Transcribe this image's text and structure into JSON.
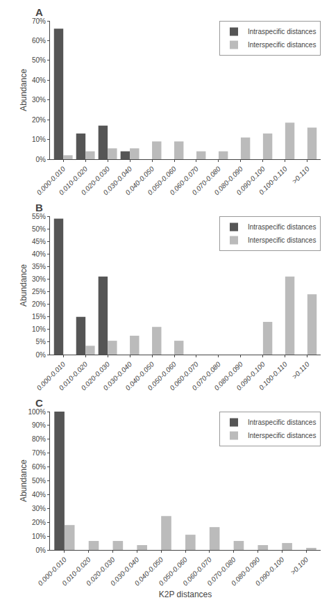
{
  "chart_data": [
    {
      "type": "bar",
      "title": "A",
      "categories": [
        "0.000-0.010",
        "0.010-0.020",
        "0.020-0.030",
        "0.030-0.040",
        "0.040-0.050",
        "0.050-0.060",
        "0.060-0.070",
        "0.070-0.080",
        "0.080-0.090",
        "0.090-0.100",
        "0.100-0.110",
        ">0.110"
      ],
      "series": [
        {
          "name": "Intraspecific distances",
          "color": "#555555",
          "values": [
            66,
            13,
            17,
            4,
            0,
            0,
            0,
            0,
            0,
            0,
            0,
            0
          ]
        },
        {
          "name": "Interspecific distances",
          "color": "#bbbbbb",
          "values": [
            2,
            4,
            5.5,
            5.5,
            9,
            9,
            4,
            4,
            11,
            13,
            18.5,
            16
          ]
        }
      ],
      "ylabel": "Abundance",
      "ylim": [
        0,
        70
      ],
      "yticks": [
        {
          "value": 0,
          "label": "0%"
        },
        {
          "value": 10,
          "label": "10%"
        },
        {
          "value": 20,
          "label": "20%"
        },
        {
          "value": 30,
          "label": "30%"
        },
        {
          "value": 40,
          "label": "40%"
        },
        {
          "value": 50,
          "label": "50%"
        },
        {
          "value": 60,
          "label": "60%"
        },
        {
          "value": 70,
          "label": "70%"
        }
      ],
      "legend": "upper right",
      "grid": false
    },
    {
      "type": "bar",
      "title": "B",
      "categories": [
        "0.000-0.010",
        "0.010-0.020",
        "0.020-0.030",
        "0.030-0.040",
        "0.040-0.050",
        "0.050-0.060",
        "0.060-0.070",
        "0.070-0.080",
        "0.080-0.090",
        "0.090-0.100",
        "0.100-0.110",
        ">0.110"
      ],
      "series": [
        {
          "name": "Intraspecific distances",
          "color": "#555555",
          "values": [
            54,
            15,
            31,
            0,
            0,
            0,
            0,
            0,
            0,
            0,
            0,
            0
          ]
        },
        {
          "name": "Interspecific distances",
          "color": "#bbbbbb",
          "values": [
            0,
            3.5,
            5.5,
            7.5,
            11,
            5.5,
            0,
            0,
            0,
            13,
            31,
            24
          ]
        }
      ],
      "ylabel": "Abundance",
      "ylim": [
        0,
        55
      ],
      "yticks": [
        {
          "value": 0,
          "label": "0%"
        },
        {
          "value": 5,
          "label": "5%"
        },
        {
          "value": 10,
          "label": "10%"
        },
        {
          "value": 15,
          "label": "15%"
        },
        {
          "value": 20,
          "label": "20%"
        },
        {
          "value": 25,
          "label": "25%"
        },
        {
          "value": 30,
          "label": "30%"
        },
        {
          "value": 35,
          "label": "35%"
        },
        {
          "value": 40,
          "label": "40%"
        },
        {
          "value": 45,
          "label": "45%"
        },
        {
          "value": 50,
          "label": "50%"
        },
        {
          "value": 55,
          "label": "55%"
        }
      ],
      "legend": "upper right",
      "grid": false
    },
    {
      "type": "bar",
      "title": "C",
      "categories": [
        "0.000-0.010",
        "0.010-0.020",
        "0.020-0.030",
        "0.030-0.040",
        "0.040-0.050",
        "0.050-0.060",
        "0.060-0.070",
        "0.070-0.080",
        "0.080-0.090",
        "0.090-0.100",
        ">0.100"
      ],
      "series": [
        {
          "name": "Intraspecific distances",
          "color": "#555555",
          "values": [
            100,
            0,
            0,
            0,
            0,
            0,
            0,
            0,
            0,
            0,
            0
          ]
        },
        {
          "name": "Interspecific distances",
          "color": "#bbbbbb",
          "values": [
            18,
            6.5,
            6.5,
            3.5,
            24.5,
            11,
            16.5,
            6.5,
            3.5,
            5,
            1.5
          ]
        }
      ],
      "xlabel": "K2P distances",
      "ylabel": "Abundance",
      "ylim": [
        0,
        100
      ],
      "yticks": [
        {
          "value": 0,
          "label": "0%"
        },
        {
          "value": 10,
          "label": "10%"
        },
        {
          "value": 20,
          "label": "20%"
        },
        {
          "value": 30,
          "label": "30%"
        },
        {
          "value": 40,
          "label": "40%"
        },
        {
          "value": 50,
          "label": "50%"
        },
        {
          "value": 60,
          "label": "60%"
        },
        {
          "value": 70,
          "label": "70%"
        },
        {
          "value": 80,
          "label": "80%"
        },
        {
          "value": 90,
          "label": "90%"
        },
        {
          "value": 100,
          "label": "100%"
        }
      ],
      "legend": "upper right",
      "grid": false
    }
  ]
}
